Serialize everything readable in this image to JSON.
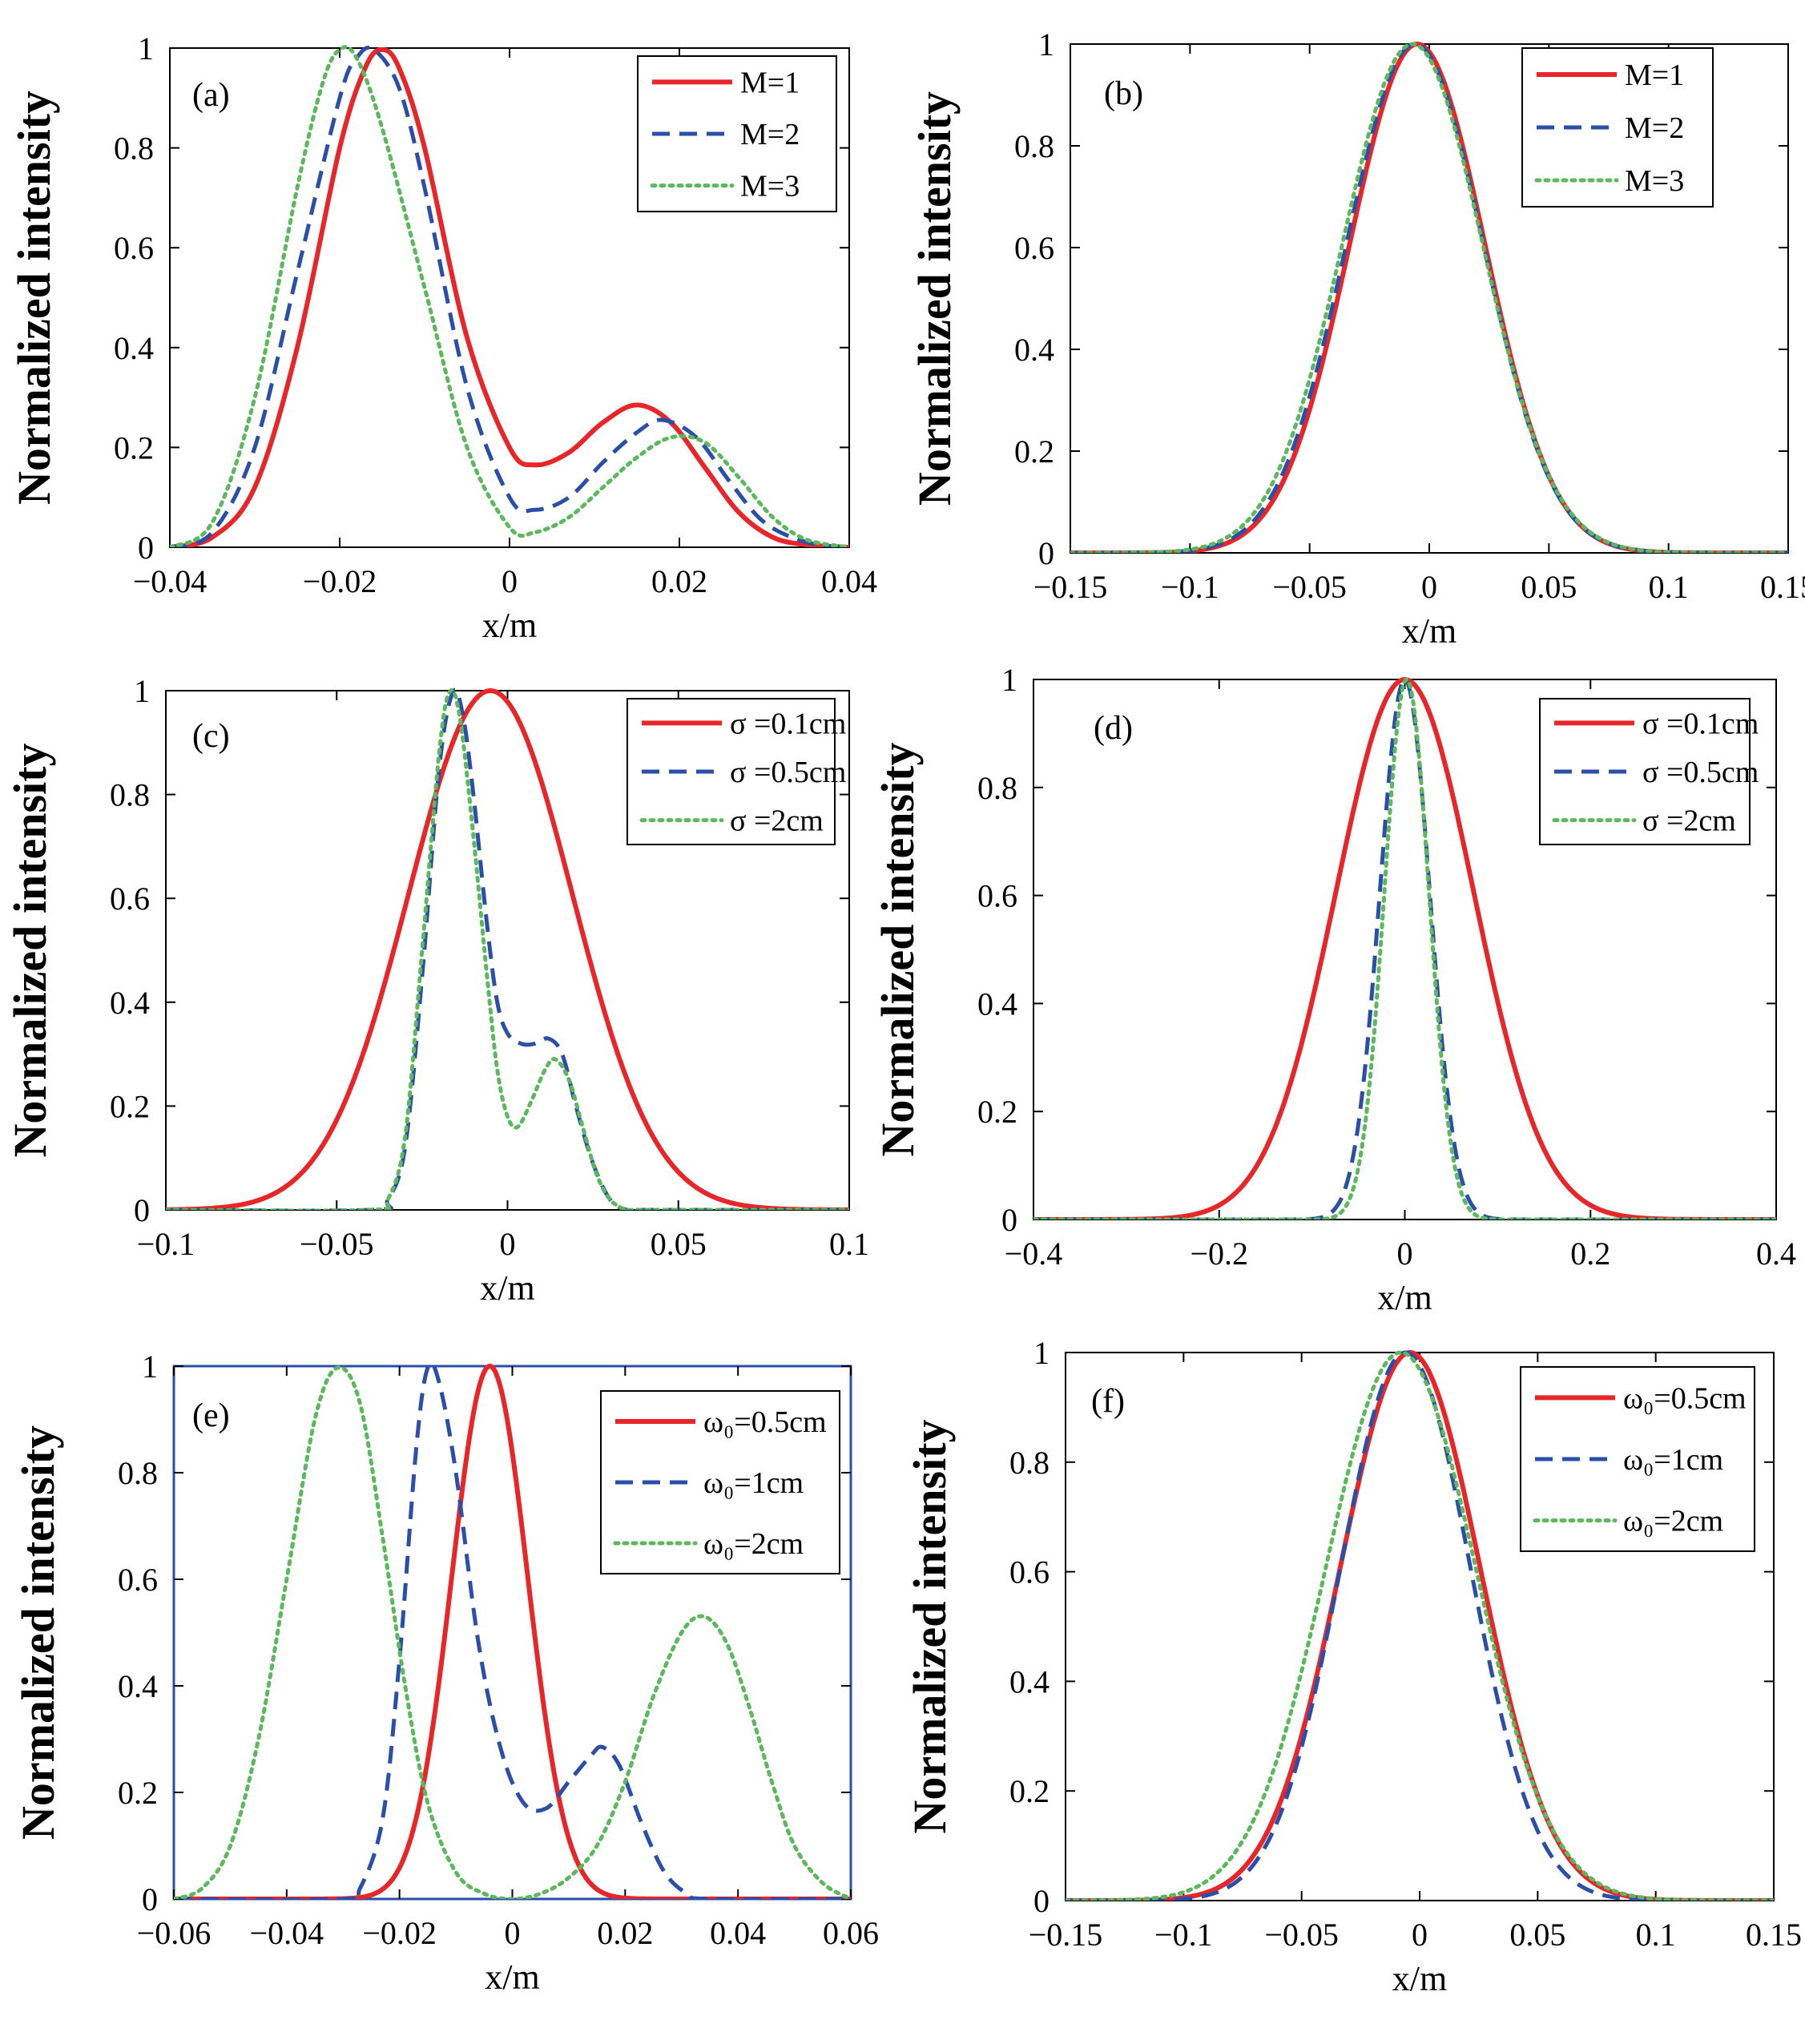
{
  "chart_data": [
    {
      "type": "line",
      "panel_label": "(a)",
      "xlabel": "x/m",
      "ylabel": "Normalized intensity",
      "xlim": [
        -0.04,
        0.04
      ],
      "ylim": [
        0,
        1
      ],
      "xticks": [
        -0.04,
        -0.02,
        0,
        0.02,
        0.04
      ],
      "xtick_labels": [
        "−0.04",
        "−0.02",
        "0",
        "0.02",
        "0.04"
      ],
      "yticks": [
        0,
        0.2,
        0.4,
        0.6,
        0.8,
        1
      ],
      "ytick_labels": [
        "0",
        "0.2",
        "0.4",
        "0.6",
        "0.8",
        "1"
      ],
      "legend_position": "top-right",
      "series": [
        {
          "name": "M=1",
          "style": "solid",
          "color": "#e8262a",
          "x": [
            -0.04,
            -0.035,
            -0.03,
            -0.025,
            -0.02,
            -0.017,
            -0.015,
            -0.013,
            -0.01,
            -0.005,
            0,
            0.003,
            0.007,
            0.011,
            0.015,
            0.019,
            0.023,
            0.027,
            0.031,
            0.035,
            0.04
          ],
          "y": [
            0.0,
            0.02,
            0.12,
            0.4,
            0.8,
            0.96,
            0.997,
            0.96,
            0.8,
            0.42,
            0.2,
            0.165,
            0.19,
            0.25,
            0.285,
            0.25,
            0.16,
            0.07,
            0.02,
            0.005,
            0.0
          ]
        },
        {
          "name": "M=2",
          "style": "dashed",
          "color": "#2b4ea8",
          "x": [
            -0.04,
            -0.035,
            -0.03,
            -0.025,
            -0.02,
            -0.018,
            -0.016,
            -0.013,
            -0.01,
            -0.005,
            0,
            0.003,
            0.007,
            0.011,
            0.015,
            0.018,
            0.022,
            0.026,
            0.03,
            0.035,
            0.04
          ],
          "y": [
            0.0,
            0.03,
            0.2,
            0.55,
            0.9,
            0.98,
            0.997,
            0.92,
            0.72,
            0.32,
            0.1,
            0.075,
            0.1,
            0.17,
            0.23,
            0.255,
            0.22,
            0.13,
            0.05,
            0.01,
            0.0
          ]
        },
        {
          "name": "M=3",
          "style": "dotted",
          "color": "#5cb85c",
          "x": [
            -0.04,
            -0.035,
            -0.03,
            -0.025,
            -0.022,
            -0.02,
            -0.018,
            -0.015,
            -0.01,
            -0.005,
            0,
            0.003,
            0.007,
            0.011,
            0.015,
            0.019,
            0.023,
            0.027,
            0.031,
            0.035,
            0.04
          ],
          "y": [
            0.0,
            0.05,
            0.3,
            0.72,
            0.93,
            0.997,
            0.98,
            0.84,
            0.52,
            0.2,
            0.04,
            0.03,
            0.06,
            0.12,
            0.18,
            0.22,
            0.21,
            0.14,
            0.06,
            0.015,
            0.0
          ]
        }
      ]
    },
    {
      "type": "line",
      "panel_label": "(b)",
      "xlabel": "x/m",
      "ylabel": "Normalized intensity",
      "xlim": [
        -0.15,
        0.15
      ],
      "ylim": [
        0,
        1
      ],
      "xticks": [
        -0.15,
        -0.1,
        -0.05,
        0,
        0.05,
        0.1,
        0.15
      ],
      "xtick_labels": [
        "−0.15",
        "−0.1",
        "−0.05",
        "0",
        "0.05",
        "0.1",
        "0.15"
      ],
      "yticks": [
        0,
        0.2,
        0.4,
        0.6,
        0.8,
        1
      ],
      "ytick_labels": [
        "0",
        "0.2",
        "0.4",
        "0.6",
        "0.8",
        "1"
      ],
      "legend_position": "top-right",
      "series": [
        {
          "name": "M=1",
          "style": "solid",
          "color": "#e8262a",
          "gaussian": {
            "center": -0.005,
            "width": 0.04
          }
        },
        {
          "name": "M=2",
          "style": "dashed",
          "color": "#2b4ea8",
          "gaussian": {
            "center": -0.006,
            "width": 0.0405
          }
        },
        {
          "name": "M=3",
          "style": "dotted",
          "color": "#5cb85c",
          "gaussian": {
            "center": -0.007,
            "width": 0.0415
          }
        }
      ]
    },
    {
      "type": "line",
      "panel_label": "(c)",
      "xlabel": "x/m",
      "ylabel": "Normalized intensity",
      "xlim": [
        -0.1,
        0.1
      ],
      "ylim": [
        0,
        1
      ],
      "xticks": [
        -0.1,
        -0.05,
        0,
        0.05,
        0.1
      ],
      "xtick_labels": [
        "−0.1",
        "−0.05",
        "0",
        "0.05",
        "0.1"
      ],
      "yticks": [
        0,
        0.2,
        0.4,
        0.6,
        0.8,
        1
      ],
      "ytick_labels": [
        "0",
        "0.2",
        "0.4",
        "0.6",
        "0.8",
        "1"
      ],
      "legend_position": "top-right",
      "series": [
        {
          "name": "σ =0.1cm",
          "style": "solid",
          "color": "#e8262a",
          "gaussian": {
            "center": -0.005,
            "width": 0.034
          }
        },
        {
          "name": "σ =0.5cm",
          "style": "dashed",
          "color": "#2b4ea8",
          "x": [
            -0.1,
            -0.04,
            -0.035,
            -0.03,
            -0.025,
            -0.02,
            -0.016,
            -0.013,
            -0.01,
            -0.006,
            -0.003,
            0,
            0.004,
            0.008,
            0.012,
            0.016,
            0.02,
            0.025,
            0.03,
            0.035,
            0.04,
            0.1
          ],
          "y": [
            0.0,
            0.0,
            0.02,
            0.12,
            0.45,
            0.85,
            0.997,
            0.95,
            0.8,
            0.55,
            0.4,
            0.34,
            0.32,
            0.32,
            0.33,
            0.3,
            0.2,
            0.09,
            0.02,
            0.0,
            0.0,
            0.0
          ]
        },
        {
          "name": "σ =2cm",
          "style": "dotted",
          "color": "#5cb85c",
          "x": [
            -0.1,
            -0.04,
            -0.035,
            -0.03,
            -0.025,
            -0.02,
            -0.017,
            -0.014,
            -0.01,
            -0.006,
            -0.003,
            0,
            0.003,
            0.007,
            0.011,
            0.014,
            0.018,
            0.022,
            0.026,
            0.03,
            0.035,
            0.04,
            0.1
          ],
          "y": [
            0.0,
            0.0,
            0.02,
            0.14,
            0.5,
            0.88,
            0.997,
            0.95,
            0.72,
            0.45,
            0.27,
            0.18,
            0.16,
            0.21,
            0.27,
            0.29,
            0.25,
            0.16,
            0.07,
            0.02,
            0.0,
            0.0,
            0.0
          ]
        }
      ]
    },
    {
      "type": "line",
      "panel_label": "(d)",
      "xlabel": "x/m",
      "ylabel": "Normalized intensity",
      "xlim": [
        -0.4,
        0.4
      ],
      "ylim": [
        0,
        1
      ],
      "xticks": [
        -0.4,
        -0.2,
        0,
        0.2,
        0.4
      ],
      "xtick_labels": [
        "−0.4",
        "−0.2",
        "0",
        "0.2",
        "0.4"
      ],
      "yticks": [
        0,
        0.2,
        0.4,
        0.6,
        0.8,
        1
      ],
      "ytick_labels": [
        "0",
        "0.2",
        "0.4",
        "0.6",
        "0.8",
        "1"
      ],
      "legend_position": "top-right",
      "series": [
        {
          "name": "σ =0.1cm",
          "style": "solid",
          "color": "#e8262a",
          "gaussian": {
            "center": 0.0,
            "width": 0.105
          }
        },
        {
          "name": "σ =0.5cm",
          "style": "dashed",
          "color": "#2b4ea8",
          "gaussian": {
            "center": 0.0,
            "width": 0.038
          }
        },
        {
          "name": "σ =2cm",
          "style": "dotted",
          "color": "#5cb85c",
          "gaussian": {
            "center": 0.002,
            "width": 0.034
          }
        }
      ]
    },
    {
      "type": "line",
      "panel_label": "(e)",
      "xlabel": "x/m",
      "ylabel": "Normalized intensity",
      "xlim": [
        -0.06,
        0.06
      ],
      "ylim": [
        0,
        1
      ],
      "xticks": [
        -0.06,
        -0.04,
        -0.02,
        0,
        0.02,
        0.04,
        0.06
      ],
      "xtick_labels": [
        "−0.06",
        "−0.04",
        "−0.02",
        "0",
        "0.02",
        "0.04",
        "0.06"
      ],
      "yticks": [
        0,
        0.2,
        0.4,
        0.6,
        0.8,
        1
      ],
      "ytick_labels": [
        "0",
        "0.2",
        "0.4",
        "0.6",
        "0.8",
        "1"
      ],
      "legend_position": "top-right",
      "series": [
        {
          "name": "ω₀=0.5cm",
          "style": "solid",
          "color": "#e8262a",
          "gaussian": {
            "center": -0.004,
            "width": 0.0095
          }
        },
        {
          "name": "ω₀=1cm",
          "style": "dashed",
          "color": "#2b4ea8",
          "x": [
            -0.06,
            -0.03,
            -0.027,
            -0.023,
            -0.02,
            -0.017,
            -0.015,
            -0.013,
            -0.01,
            -0.006,
            -0.002,
            0.002,
            0.006,
            0.01,
            0.014,
            0.016,
            0.019,
            0.023,
            0.027,
            0.031,
            0.035,
            0.06
          ],
          "y": [
            0.0,
            0.0,
            0.02,
            0.15,
            0.45,
            0.85,
            0.997,
            0.97,
            0.8,
            0.48,
            0.28,
            0.18,
            0.17,
            0.22,
            0.27,
            0.285,
            0.25,
            0.14,
            0.05,
            0.01,
            0.0,
            0.0
          ]
        },
        {
          "name": "ω₀=2cm",
          "style": "dotted",
          "color": "#5cb85c",
          "x": [
            -0.06,
            -0.055,
            -0.05,
            -0.045,
            -0.04,
            -0.035,
            -0.031,
            -0.027,
            -0.023,
            -0.019,
            -0.015,
            -0.01,
            -0.005,
            0,
            0.005,
            0.01,
            0.015,
            0.02,
            0.025,
            0.03,
            0.034,
            0.038,
            0.042,
            0.046,
            0.05,
            0.055,
            0.06
          ],
          "y": [
            0.0,
            0.02,
            0.1,
            0.3,
            0.6,
            0.9,
            0.997,
            0.93,
            0.68,
            0.4,
            0.18,
            0.05,
            0.01,
            0.0,
            0.01,
            0.04,
            0.1,
            0.22,
            0.38,
            0.5,
            0.53,
            0.48,
            0.36,
            0.22,
            0.1,
            0.03,
            0.0
          ]
        }
      ]
    },
    {
      "type": "line",
      "panel_label": "(f)",
      "xlabel": "x/m",
      "ylabel": "Normalized intensity",
      "xlim": [
        -0.15,
        0.15
      ],
      "ylim": [
        0,
        1
      ],
      "xticks": [
        -0.15,
        -0.1,
        -0.05,
        0,
        0.05,
        0.1,
        0.15
      ],
      "xtick_labels": [
        "−0.15",
        "−0.1",
        "−0.05",
        "0",
        "0.05",
        "0.1",
        "0.15"
      ],
      "yticks": [
        0,
        0.2,
        0.4,
        0.6,
        0.8,
        1
      ],
      "ytick_labels": [
        "0",
        "0.2",
        "0.4",
        "0.6",
        "0.8",
        "1"
      ],
      "legend_position": "top-right",
      "series": [
        {
          "name": "ω₀=0.5cm",
          "style": "solid",
          "color": "#e8262a",
          "gaussian": {
            "center": -0.004,
            "width": 0.042
          }
        },
        {
          "name": "ω₀=1cm",
          "style": "dashed",
          "color": "#2b4ea8",
          "gaussian": {
            "center": -0.006,
            "width": 0.039
          }
        },
        {
          "name": "ω₀=2cm",
          "style": "dotted",
          "color": "#5cb85c",
          "gaussian": {
            "center": -0.008,
            "width": 0.045
          }
        }
      ]
    }
  ]
}
